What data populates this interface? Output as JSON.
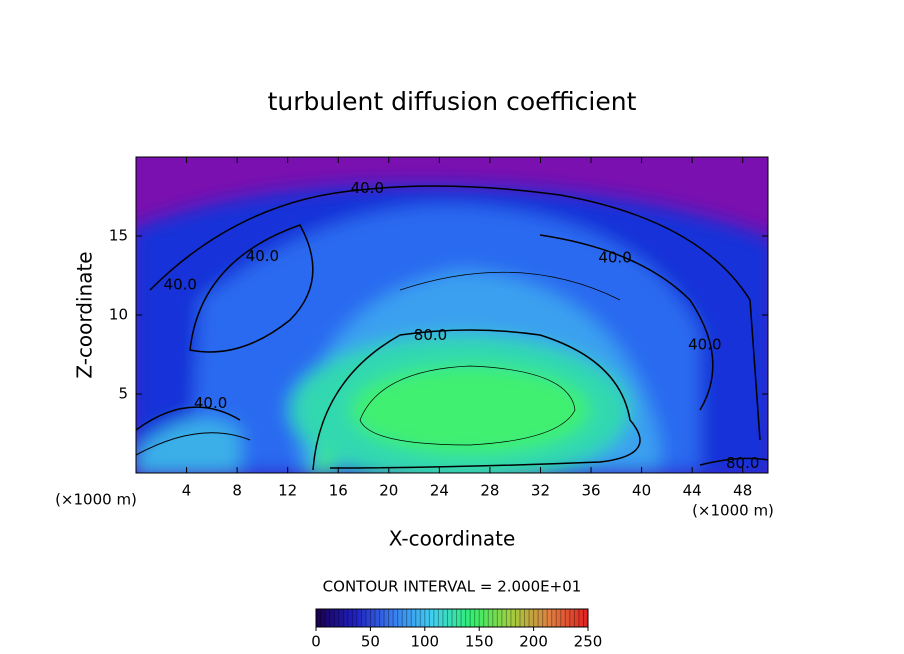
{
  "chart_data": {
    "type": "contour",
    "title": "turbulent diffusion coefficient",
    "x_label": "X-coordinate",
    "y_label": "Z-coordinate",
    "x_unit": "(×1000 m)",
    "y_unit": "(×1000 m)",
    "xlim": [
      0,
      50
    ],
    "ylim": [
      0,
      20
    ],
    "xticks": [
      4,
      8,
      12,
      16,
      20,
      24,
      28,
      32,
      36,
      40,
      44,
      48
    ],
    "yticks": [
      5,
      10,
      15
    ],
    "contour_labels": [
      {
        "text": "40.0",
        "x": 18.3,
        "y": 18.0
      },
      {
        "text": "40.0",
        "x": 10.0,
        "y": 13.7
      },
      {
        "text": "40.0",
        "x": 3.5,
        "y": 11.9
      },
      {
        "text": "40.0",
        "x": 37.9,
        "y": 13.6
      },
      {
        "text": "40.0",
        "x": 45.0,
        "y": 8.1
      },
      {
        "text": "40.0",
        "x": 5.9,
        "y": 4.4
      },
      {
        "text": "80.0",
        "x": 23.3,
        "y": 8.7
      },
      {
        "text": "80.0",
        "x": 48.0,
        "y": 0.6
      }
    ],
    "contour_interval": "CONTOUR INTERVAL = 2.000E+01",
    "colorbar": {
      "lim": [
        0,
        250
      ],
      "ticks": [
        0,
        50,
        100,
        150,
        200,
        250
      ],
      "colors": [
        "#1a0050",
        "#2020c0",
        "#3a7ef0",
        "#40d0f0",
        "#30f070",
        "#a0d040",
        "#e08040",
        "#e02020"
      ]
    }
  }
}
